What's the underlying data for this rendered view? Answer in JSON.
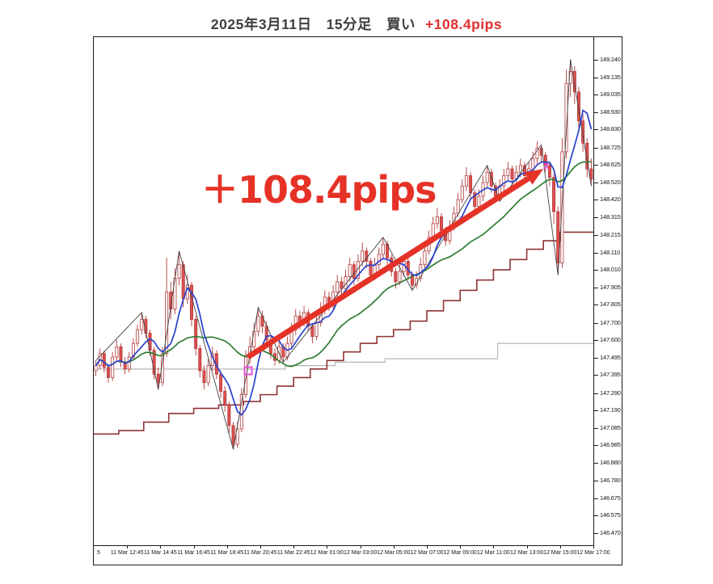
{
  "title": {
    "main": "2025年3月11日　15分足　買い",
    "result": "+108.4pips"
  },
  "chart_data": {
    "type": "candlestick",
    "grid": false,
    "background": "#ffffff",
    "price_axis": {
      "side": "right",
      "top_price": 149.37,
      "bottom_price": 146.4,
      "labels": [
        "149.240",
        "149.135",
        "149.035",
        "148.930",
        "148.830",
        "148.725",
        "148.625",
        "148.520",
        "148.420",
        "148.315",
        "148.215",
        "148.110",
        "148.010",
        "147.905",
        "147.805",
        "147.700",
        "147.600",
        "147.495",
        "147.395",
        "147.290",
        "147.190",
        "147.085",
        "146.985",
        "146.880",
        "146.780",
        "146.675",
        "146.575",
        "146.470"
      ]
    },
    "time_axis": {
      "labels": [
        "5",
        "11 Mar 12:45",
        "11 Mar 14:45",
        "11 Mar 16:45",
        "11 Mar 18:45",
        "11 Mar 20:45",
        "11 Mar 22:45",
        "12 Mar 01:00",
        "12 Mar 03:00",
        "12 Mar 05:00",
        "12 Mar 07:00",
        "12 Mar 09:00",
        "12 Mar 11:00",
        "12 Mar 13:00",
        "12 Mar 15:00",
        "12 Mar 17:00"
      ]
    },
    "candle_colors": {
      "bull_fill": "#ffffff",
      "bear_fill": "#df5050",
      "stroke": "#b33939"
    },
    "candles_ohlc": [
      [
        147.42,
        147.48,
        147.39,
        147.45
      ],
      [
        147.45,
        147.55,
        147.43,
        147.52
      ],
      [
        147.52,
        147.54,
        147.41,
        147.44
      ],
      [
        147.44,
        147.46,
        147.35,
        147.38
      ],
      [
        147.38,
        147.53,
        147.36,
        147.5
      ],
      [
        147.5,
        147.6,
        147.48,
        147.56
      ],
      [
        147.56,
        147.58,
        147.44,
        147.47
      ],
      [
        147.47,
        147.5,
        147.4,
        147.43
      ],
      [
        147.43,
        147.53,
        147.41,
        147.5
      ],
      [
        147.5,
        147.61,
        147.48,
        147.58
      ],
      [
        147.58,
        147.69,
        147.56,
        147.66
      ],
      [
        147.66,
        147.76,
        147.63,
        147.72
      ],
      [
        147.72,
        147.74,
        147.61,
        147.64
      ],
      [
        147.64,
        147.66,
        147.51,
        147.54
      ],
      [
        147.54,
        147.56,
        147.37,
        147.4
      ],
      [
        147.4,
        147.44,
        147.31,
        147.35
      ],
      [
        147.35,
        147.56,
        147.33,
        147.52
      ],
      [
        147.52,
        148.08,
        147.5,
        147.88
      ],
      [
        147.88,
        147.94,
        147.72,
        147.78
      ],
      [
        147.78,
        148.02,
        147.75,
        147.96
      ],
      [
        147.96,
        148.12,
        147.92,
        148.04
      ],
      [
        148.04,
        148.06,
        147.79,
        147.84
      ],
      [
        147.84,
        147.98,
        147.81,
        147.92
      ],
      [
        147.92,
        147.94,
        147.68,
        147.72
      ],
      [
        147.72,
        147.74,
        147.51,
        147.55
      ],
      [
        147.55,
        147.57,
        147.38,
        147.42
      ],
      [
        147.42,
        147.45,
        147.31,
        147.35
      ],
      [
        147.35,
        147.49,
        147.33,
        147.45
      ],
      [
        147.45,
        147.56,
        147.42,
        147.52
      ],
      [
        147.52,
        147.54,
        147.37,
        147.4
      ],
      [
        147.4,
        147.42,
        147.26,
        147.3
      ],
      [
        147.3,
        147.33,
        147.18,
        147.22
      ],
      [
        147.22,
        147.24,
        147.05,
        147.1
      ],
      [
        147.1,
        147.12,
        146.96,
        146.99
      ],
      [
        146.99,
        147.12,
        146.97,
        147.08
      ],
      [
        147.08,
        147.32,
        147.06,
        147.28
      ],
      [
        147.28,
        147.54,
        147.26,
        147.5
      ],
      [
        147.5,
        147.62,
        147.46,
        147.56
      ],
      [
        147.56,
        147.7,
        147.53,
        147.65
      ],
      [
        147.65,
        147.79,
        147.62,
        147.74
      ],
      [
        147.74,
        147.77,
        147.64,
        147.68
      ],
      [
        147.68,
        147.71,
        147.57,
        147.6
      ],
      [
        147.6,
        147.62,
        147.49,
        147.52
      ],
      [
        147.52,
        147.55,
        147.45,
        147.48
      ],
      [
        147.48,
        147.6,
        147.46,
        147.56
      ],
      [
        147.56,
        147.58,
        147.47,
        147.5
      ],
      [
        147.5,
        147.62,
        147.48,
        147.58
      ],
      [
        147.58,
        147.7,
        147.55,
        147.66
      ],
      [
        147.66,
        147.78,
        147.63,
        147.74
      ],
      [
        147.74,
        147.77,
        147.66,
        147.7
      ],
      [
        147.7,
        147.8,
        147.68,
        147.76
      ],
      [
        147.76,
        147.78,
        147.65,
        147.68
      ],
      [
        147.68,
        147.7,
        147.58,
        147.62
      ],
      [
        147.62,
        147.74,
        147.6,
        147.7
      ],
      [
        147.7,
        147.82,
        147.68,
        147.78
      ],
      [
        147.78,
        147.89,
        147.75,
        147.85
      ],
      [
        147.85,
        147.88,
        147.77,
        147.8
      ],
      [
        147.8,
        147.92,
        147.78,
        147.88
      ],
      [
        147.88,
        147.98,
        147.85,
        147.94
      ],
      [
        147.94,
        147.97,
        147.86,
        147.9
      ],
      [
        147.9,
        148.01,
        147.88,
        147.97
      ],
      [
        147.97,
        148.08,
        147.94,
        148.04
      ],
      [
        148.04,
        148.06,
        147.92,
        147.96
      ],
      [
        147.96,
        148.1,
        147.94,
        148.06
      ],
      [
        148.06,
        148.17,
        148.03,
        148.12
      ],
      [
        148.12,
        148.14,
        148.02,
        148.06
      ],
      [
        148.06,
        148.08,
        147.94,
        147.98
      ],
      [
        147.98,
        148.08,
        147.95,
        148.04
      ],
      [
        148.04,
        148.14,
        148.01,
        148.1
      ],
      [
        148.1,
        148.2,
        148.07,
        148.16
      ],
      [
        148.16,
        148.18,
        148.04,
        148.08
      ],
      [
        148.08,
        148.1,
        147.97,
        148.0
      ],
      [
        148.0,
        148.02,
        147.9,
        147.94
      ],
      [
        147.94,
        148.04,
        147.92,
        148.0
      ],
      [
        148.0,
        148.1,
        147.97,
        148.06
      ],
      [
        148.06,
        148.08,
        147.95,
        147.98
      ],
      [
        147.98,
        148.0,
        147.89,
        147.92
      ],
      [
        147.92,
        148.0,
        147.9,
        147.96
      ],
      [
        147.96,
        148.08,
        147.94,
        148.04
      ],
      [
        148.04,
        148.16,
        148.02,
        148.12
      ],
      [
        148.12,
        148.24,
        148.1,
        148.2
      ],
      [
        148.2,
        148.32,
        148.17,
        148.28
      ],
      [
        148.28,
        148.37,
        148.25,
        148.32
      ],
      [
        148.32,
        148.34,
        148.21,
        148.24
      ],
      [
        148.24,
        148.26,
        148.15,
        148.18
      ],
      [
        148.18,
        148.3,
        148.16,
        148.26
      ],
      [
        148.26,
        148.38,
        148.24,
        148.34
      ],
      [
        148.34,
        148.46,
        148.32,
        148.42
      ],
      [
        148.42,
        148.54,
        148.4,
        148.5
      ],
      [
        148.5,
        148.61,
        148.47,
        148.56
      ],
      [
        148.56,
        148.58,
        148.42,
        148.46
      ],
      [
        148.46,
        148.48,
        148.34,
        148.38
      ],
      [
        148.38,
        148.48,
        148.35,
        148.44
      ],
      [
        148.44,
        148.56,
        148.41,
        148.52
      ],
      [
        148.52,
        148.62,
        148.49,
        148.58
      ],
      [
        148.58,
        148.6,
        148.46,
        148.5
      ],
      [
        148.5,
        148.52,
        148.4,
        148.44
      ],
      [
        148.44,
        148.54,
        148.41,
        148.5
      ],
      [
        148.5,
        148.6,
        148.47,
        148.56
      ],
      [
        148.56,
        148.64,
        148.53,
        148.6
      ],
      [
        148.6,
        148.62,
        148.5,
        148.54
      ],
      [
        148.54,
        148.62,
        148.51,
        148.58
      ],
      [
        148.58,
        148.66,
        148.55,
        148.62
      ],
      [
        148.62,
        148.64,
        148.52,
        148.56
      ],
      [
        148.56,
        148.64,
        148.53,
        148.6
      ],
      [
        148.6,
        148.7,
        148.57,
        148.66
      ],
      [
        148.66,
        148.76,
        148.63,
        148.72
      ],
      [
        148.72,
        148.74,
        148.64,
        148.68
      ],
      [
        148.68,
        148.7,
        148.58,
        148.62
      ],
      [
        148.62,
        148.64,
        148.5,
        148.55
      ],
      [
        148.55,
        148.57,
        148.28,
        148.35
      ],
      [
        148.35,
        148.38,
        147.98,
        148.05
      ],
      [
        148.05,
        148.78,
        148.02,
        148.7
      ],
      [
        148.7,
        149.18,
        148.66,
        149.1
      ],
      [
        149.1,
        149.24,
        149.02,
        149.17
      ],
      [
        149.17,
        149.2,
        148.98,
        149.05
      ],
      [
        149.05,
        149.08,
        148.82,
        148.88
      ],
      [
        148.88,
        148.92,
        148.7,
        148.75
      ],
      [
        148.75,
        148.78,
        148.55,
        148.6
      ],
      [
        148.6,
        148.66,
        148.5,
        148.54
      ]
    ],
    "overlays": {
      "ma_fast": {
        "color": "#2741cc",
        "period": 6
      },
      "ma_slow": {
        "color": "#2e7d32",
        "period": 24
      },
      "stop_step_line": {
        "color": "#8e3434",
        "points": [
          [
            0,
            147.05
          ],
          [
            6,
            147.07
          ],
          [
            12,
            147.12
          ],
          [
            18,
            147.17
          ],
          [
            24,
            147.2
          ],
          [
            30,
            147.22
          ],
          [
            36,
            147.24
          ],
          [
            40,
            147.28
          ],
          [
            44,
            147.33
          ],
          [
            48,
            147.38
          ],
          [
            52,
            147.43
          ],
          [
            56,
            147.48
          ],
          [
            60,
            147.53
          ],
          [
            64,
            147.58
          ],
          [
            68,
            147.62
          ],
          [
            72,
            147.66
          ],
          [
            76,
            147.71
          ],
          [
            80,
            147.77
          ],
          [
            84,
            147.83
          ],
          [
            88,
            147.89
          ],
          [
            92,
            147.95
          ],
          [
            96,
            148.01
          ],
          [
            100,
            148.07
          ],
          [
            104,
            148.13
          ],
          [
            108,
            148.18
          ],
          [
            112,
            148.23
          ],
          [
            120,
            148.23
          ]
        ]
      },
      "flat_step_line": {
        "color": "#b5b5b5",
        "points": [
          [
            0,
            147.43
          ],
          [
            46,
            147.43
          ],
          [
            46,
            147.45
          ],
          [
            58,
            147.45
          ],
          [
            58,
            147.47
          ],
          [
            70,
            147.47
          ],
          [
            70,
            147.49
          ],
          [
            97,
            147.49
          ],
          [
            97,
            147.58
          ],
          [
            120,
            147.58
          ]
        ]
      },
      "zigzag": {
        "color": "#444444",
        "points": [
          [
            0,
            147.48
          ],
          [
            11,
            147.76
          ],
          [
            15,
            147.31
          ],
          [
            20,
            148.12
          ],
          [
            33,
            146.96
          ],
          [
            39,
            147.79
          ],
          [
            45,
            147.47
          ],
          [
            69,
            148.2
          ],
          [
            76,
            147.89
          ],
          [
            94,
            148.62
          ],
          [
            97,
            148.41
          ],
          [
            107,
            148.74
          ],
          [
            111,
            147.98
          ],
          [
            114,
            149.24
          ],
          [
            119,
            148.5
          ]
        ]
      }
    },
    "trade": {
      "direction": "買い",
      "profit_pips": 108.4,
      "arrow": {
        "from": [
          36.5,
          147.5
        ],
        "to": [
          107.5,
          148.6
        ],
        "color": "#e63226"
      },
      "entry_marker": {
        "index": 36.6,
        "price": 147.42
      },
      "exit_marker": {
        "index": 108.2,
        "price": 148.62,
        "glyph": "x"
      },
      "marker_color": "#e14fd2"
    },
    "annotations": {
      "profit_label": "＋108.4pips",
      "profit_label_color": "#e63226"
    }
  }
}
